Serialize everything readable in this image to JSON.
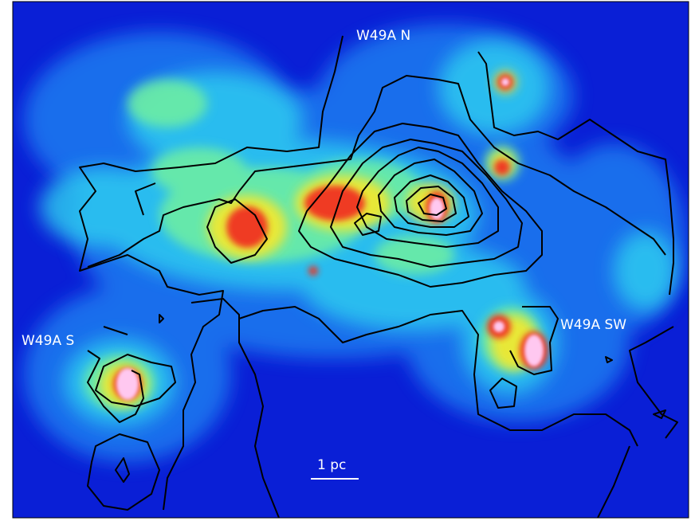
{
  "labels": {
    "north": "W49A N",
    "south": "W49A S",
    "southwest": "W49A SW"
  },
  "scale_bar": {
    "label": "1 pc"
  },
  "colors": {
    "background": "#0a1fd6",
    "contour": "#000000",
    "peak": "#ffc8f0",
    "text": "#ffffff"
  }
}
